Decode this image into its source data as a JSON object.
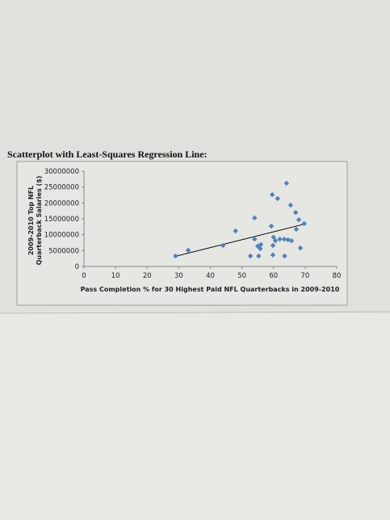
{
  "chart_data": {
    "type": "scatter",
    "heading": "Scatterplot with Least-Squares Regression Line:",
    "xlabel": "Pass Completion % for 30 Highest Paid NFL Quarterbacks in 2009-2010",
    "ylabel": [
      "2009-2010 Top NFL",
      "Quarterback Salaries ($)"
    ],
    "xlim": [
      0,
      80
    ],
    "xticks": [
      0,
      10,
      20,
      30,
      40,
      50,
      60,
      70,
      80
    ],
    "ylim": [
      0,
      30000000
    ],
    "yticks": [
      0,
      5000000,
      10000000,
      15000000,
      20000000,
      25000000,
      30000000
    ],
    "color": "#4f81bd",
    "x": [
      29,
      33,
      44,
      48,
      54,
      54,
      52.7,
      55,
      55.3,
      55.8,
      56,
      59.3,
      59.6,
      59.8,
      59.8,
      60,
      60.6,
      61.3,
      62,
      63.4,
      63.5,
      64.1,
      64.6,
      65.4,
      65.7,
      67,
      67.2,
      68,
      68.5,
      69.7
    ],
    "values": [
      3300000,
      5100000,
      6600000,
      11200000,
      15300000,
      8600000,
      3300000,
      6400000,
      3300000,
      5600000,
      6900000,
      12700000,
      22600000,
      6600000,
      3600000,
      9200000,
      8100000,
      21400000,
      8600000,
      8600000,
      3300000,
      26200000,
      8400000,
      19300000,
      8100000,
      17000000,
      11700000,
      14700000,
      5800000,
      13500000
    ],
    "regression_line": {
      "x": [
        29,
        70
      ],
      "values": [
        3200000,
        13400000
      ],
      "color": "#000000"
    }
  }
}
